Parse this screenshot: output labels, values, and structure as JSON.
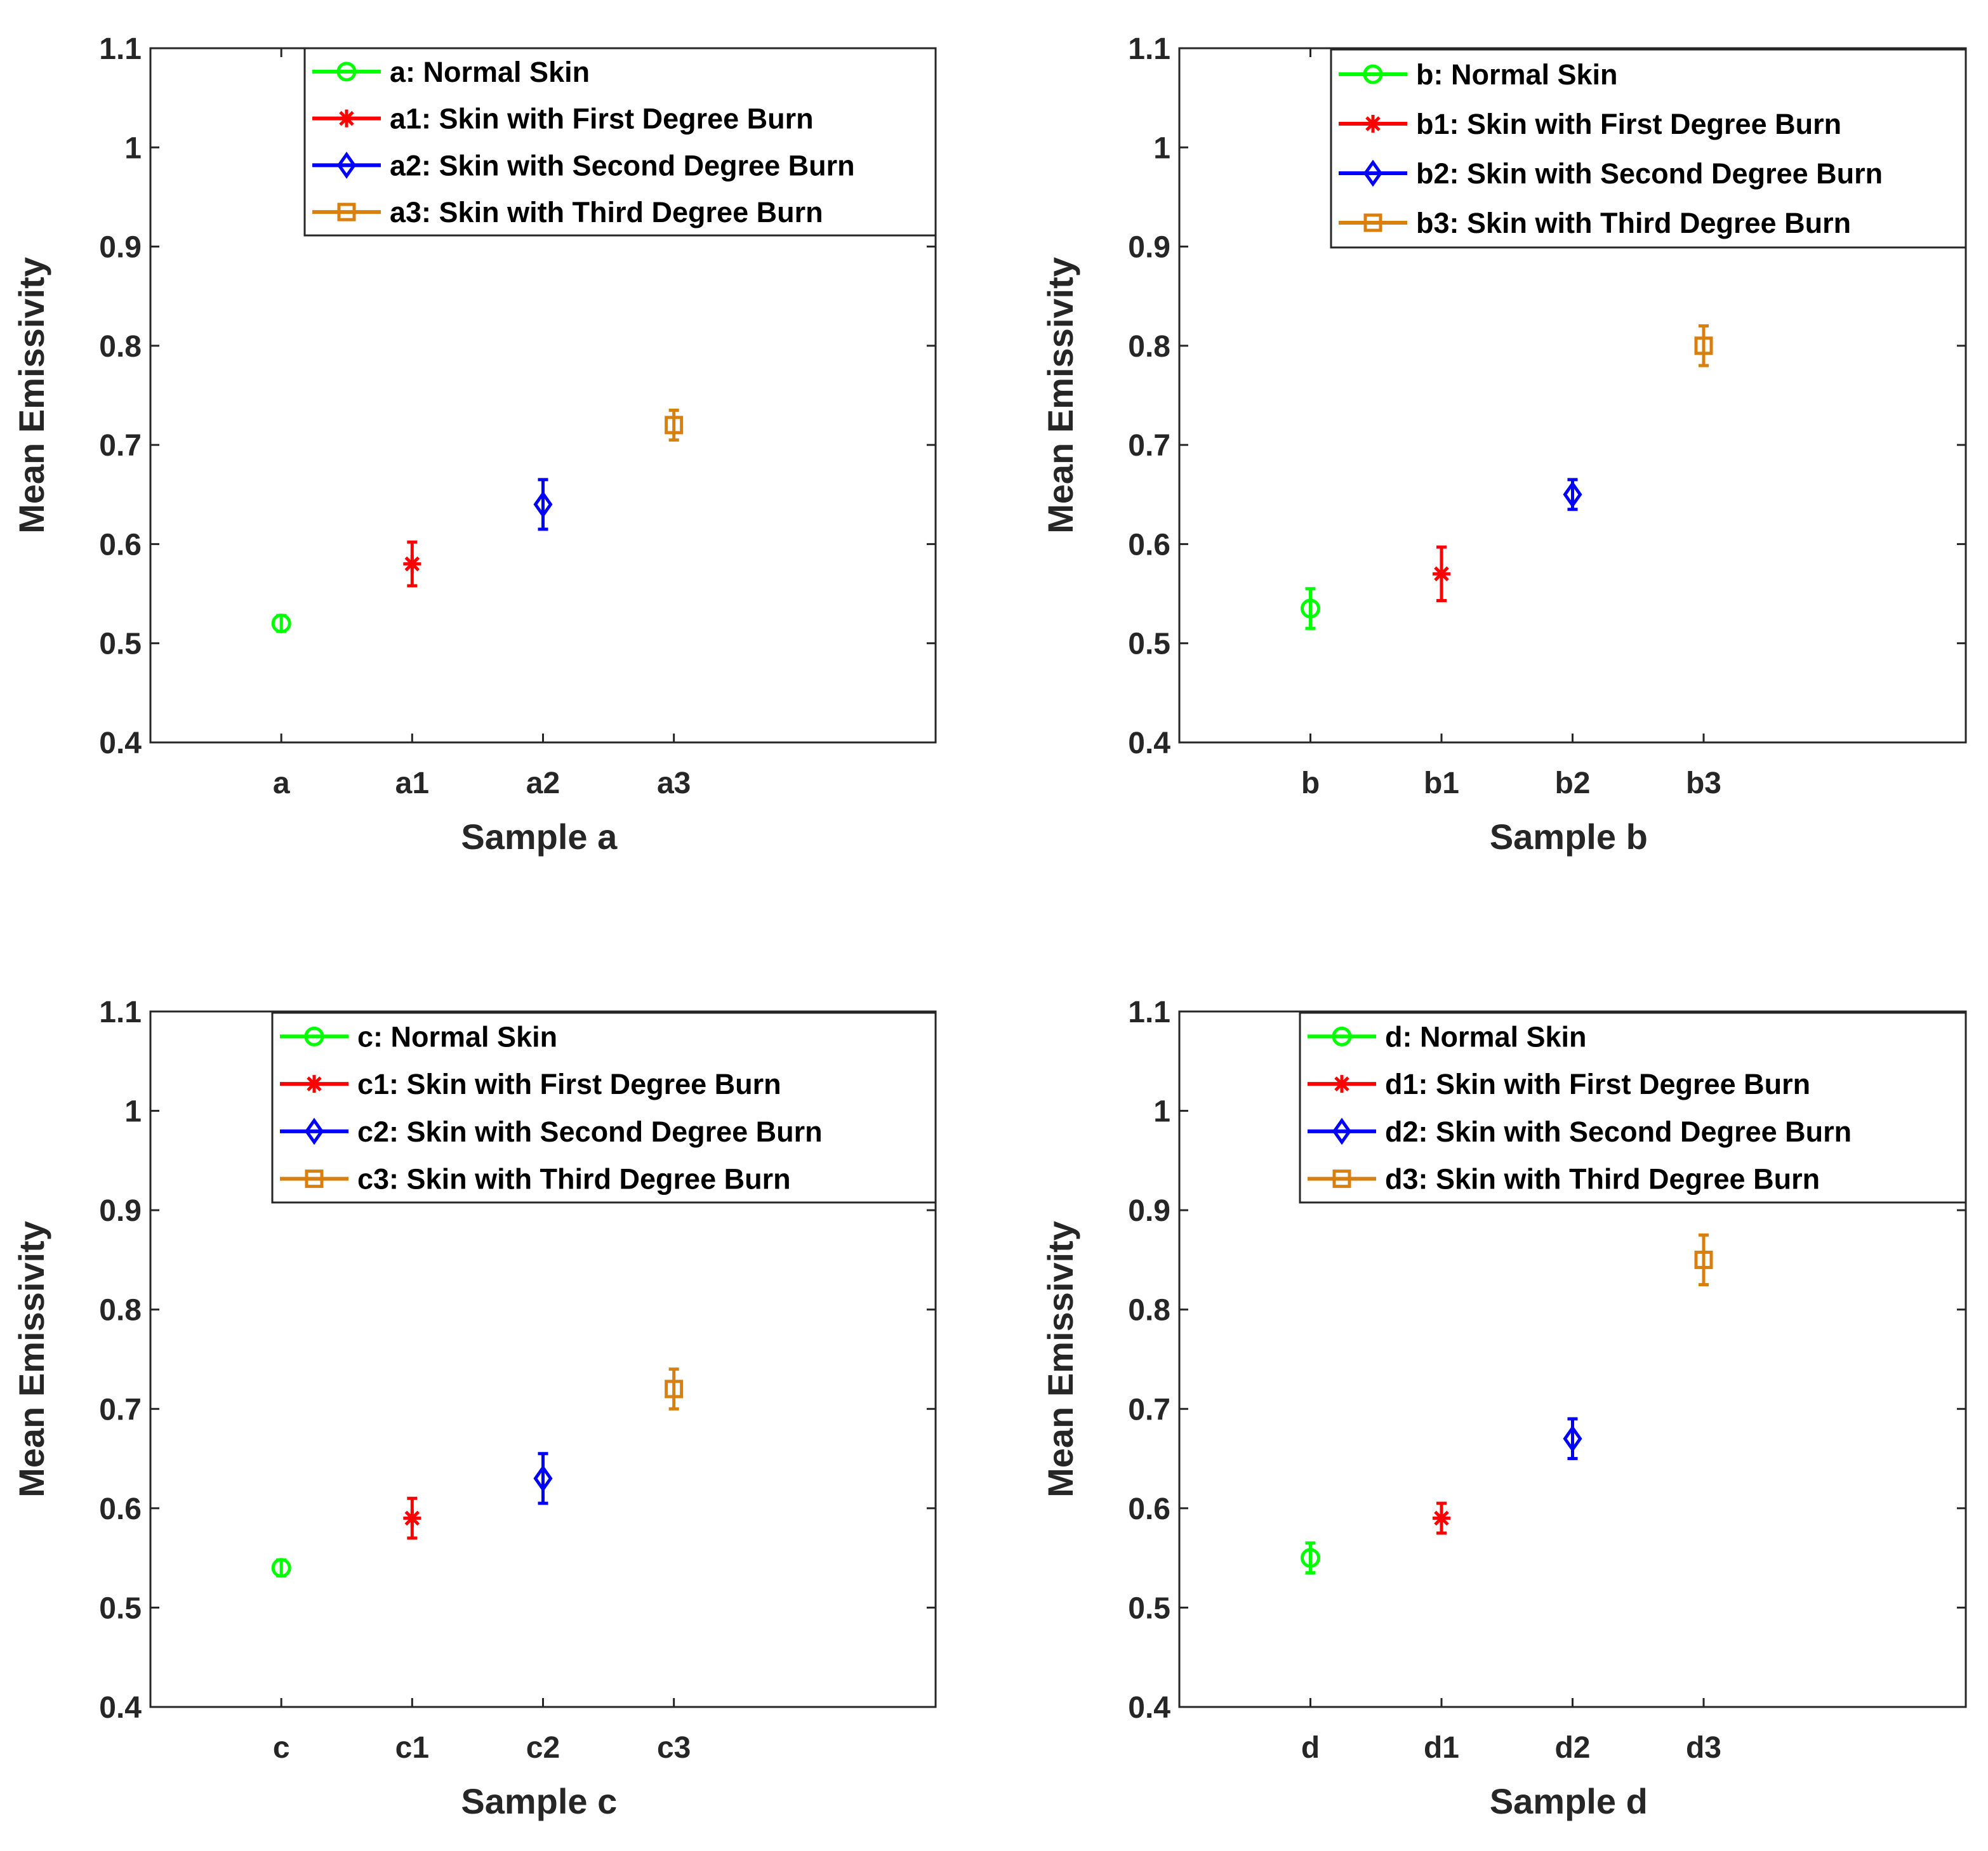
{
  "chart_data": [
    {
      "type": "errorbar",
      "xlabel": "Sample a",
      "ylabel": "Mean Emissivity",
      "ylim": [
        0.4,
        1.1
      ],
      "yticks": [
        "0.4",
        "0.5",
        "0.6",
        "0.7",
        "0.8",
        "0.9",
        "1",
        "1.1"
      ],
      "categories": [
        "a",
        "a1",
        "a2",
        "a3"
      ],
      "series": [
        {
          "name": "a: Normal Skin",
          "marker": "circle",
          "color": "#00ff00",
          "value": 0.52,
          "error": 0.008
        },
        {
          "name": "a1: Skin with First Degree Burn",
          "marker": "asterisk",
          "color": "#ff0000",
          "value": 0.58,
          "error": 0.022
        },
        {
          "name": "a2: Skin with Second Degree Burn",
          "marker": "diamond",
          "color": "#0000ff",
          "value": 0.64,
          "error": 0.025
        },
        {
          "name": "a3: Skin with Third Degree Burn",
          "marker": "square",
          "color": "#d97f0d",
          "value": 0.72,
          "error": 0.015
        }
      ]
    },
    {
      "type": "errorbar",
      "xlabel": "Sample b",
      "ylabel": "Mean Emissivity",
      "ylim": [
        0.4,
        1.1
      ],
      "yticks": [
        "0.4",
        "0.5",
        "0.6",
        "0.7",
        "0.8",
        "0.9",
        "1",
        "1.1"
      ],
      "categories": [
        "b",
        "b1",
        "b2",
        "b3"
      ],
      "series": [
        {
          "name": "b: Normal Skin",
          "marker": "circle",
          "color": "#00ff00",
          "value": 0.535,
          "error": 0.02
        },
        {
          "name": "b1: Skin with First Degree Burn",
          "marker": "asterisk",
          "color": "#ff0000",
          "value": 0.57,
          "error": 0.027
        },
        {
          "name": "b2: Skin with Second Degree Burn",
          "marker": "diamond",
          "color": "#0000ff",
          "value": 0.65,
          "error": 0.015
        },
        {
          "name": "b3: Skin with Third Degree Burn",
          "marker": "square",
          "color": "#d97f0d",
          "value": 0.8,
          "error": 0.02
        }
      ]
    },
    {
      "type": "errorbar",
      "xlabel": "Sample c",
      "ylabel": "Mean Emissivity",
      "ylim": [
        0.4,
        1.1
      ],
      "yticks": [
        "0.4",
        "0.5",
        "0.6",
        "0.7",
        "0.8",
        "0.9",
        "1",
        "1.1"
      ],
      "categories": [
        "c",
        "c1",
        "c2",
        "c3"
      ],
      "series": [
        {
          "name": "c: Normal Skin",
          "marker": "circle",
          "color": "#00ff00",
          "value": 0.54,
          "error": 0.008
        },
        {
          "name": "c1: Skin with First Degree Burn",
          "marker": "asterisk",
          "color": "#ff0000",
          "value": 0.59,
          "error": 0.02
        },
        {
          "name": "c2: Skin with Second Degree Burn",
          "marker": "diamond",
          "color": "#0000ff",
          "value": 0.63,
          "error": 0.025
        },
        {
          "name": "c3: Skin with Third Degree Burn",
          "marker": "square",
          "color": "#d97f0d",
          "value": 0.72,
          "error": 0.02
        }
      ]
    },
    {
      "type": "errorbar",
      "xlabel": "Sample d",
      "ylabel": "Mean Emissivity",
      "ylim": [
        0.4,
        1.1
      ],
      "yticks": [
        "0.4",
        "0.5",
        "0.6",
        "0.7",
        "0.8",
        "0.9",
        "1",
        "1.1"
      ],
      "categories": [
        "d",
        "d1",
        "d2",
        "d3"
      ],
      "series": [
        {
          "name": "d: Normal Skin",
          "marker": "circle",
          "color": "#00ff00",
          "value": 0.55,
          "error": 0.015
        },
        {
          "name": "d1: Skin with First Degree Burn",
          "marker": "asterisk",
          "color": "#ff0000",
          "value": 0.59,
          "error": 0.015
        },
        {
          "name": "d2: Skin with Second Degree Burn",
          "marker": "diamond",
          "color": "#0000ff",
          "value": 0.67,
          "error": 0.02
        },
        {
          "name": "d3: Skin with Third Degree Burn",
          "marker": "square",
          "color": "#d97f0d",
          "value": 0.85,
          "error": 0.025
        }
      ]
    }
  ]
}
